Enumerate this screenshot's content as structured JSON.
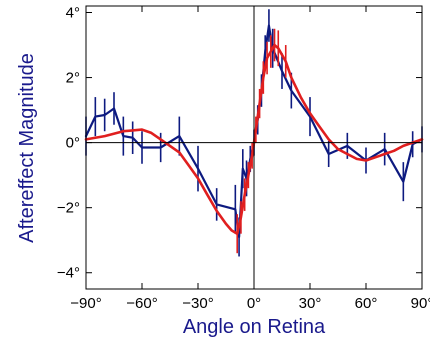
{
  "chart_data": {
    "type": "line",
    "xlabel": "Angle on Retina",
    "ylabel": "Aftereffect Magnitude",
    "xlim": [
      -90,
      90
    ],
    "ylim": [
      -4.5,
      4.2
    ],
    "x_ticks": [
      -90,
      -60,
      -30,
      0,
      30,
      60,
      90
    ],
    "x_tick_labels": [
      "−90°",
      "−60°",
      "−30°",
      "0°",
      "30°",
      "60°",
      "90°"
    ],
    "y_ticks": [
      4,
      2,
      0,
      -2,
      -4
    ],
    "y_tick_labels": [
      "4°",
      "2°",
      "0°",
      "−2°",
      "−4°"
    ],
    "reference_lines": {
      "x": 0,
      "y": 0
    },
    "label_color": "#1a1a8c",
    "series": [
      {
        "color": "#0d1a80",
        "points": [
          {
            "x": -90,
            "y": 0.2,
            "err": 0.6
          },
          {
            "x": -85,
            "y": 0.8,
            "err": 0.6
          },
          {
            "x": -80,
            "y": 0.85,
            "err": 0.5
          },
          {
            "x": -75,
            "y": 1.05,
            "err": 0.5
          },
          {
            "x": -70,
            "y": 0.2,
            "err": 0.6
          },
          {
            "x": -65,
            "y": 0.15,
            "err": 0.5
          },
          {
            "x": -60,
            "y": -0.15,
            "err": 0.5
          },
          {
            "x": -50,
            "y": -0.15,
            "err": 0.45
          },
          {
            "x": -40,
            "y": 0.2,
            "err": 0.6
          },
          {
            "x": -30,
            "y": -0.8,
            "err": 0.7
          },
          {
            "x": -20,
            "y": -1.9,
            "err": 0.5
          },
          {
            "x": -10,
            "y": -2.05,
            "err": 0.75
          },
          {
            "x": -8,
            "y": -2.9,
            "err": 0.6
          },
          {
            "x": -6,
            "y": -0.8,
            "err": 0.6
          },
          {
            "x": -4,
            "y": -1.1,
            "err": 0.55
          },
          {
            "x": -2,
            "y": -0.5,
            "err": 0.4
          },
          {
            "x": 0,
            "y": 0.0,
            "err": 0.4
          },
          {
            "x": 2,
            "y": 0.7,
            "err": 0.45
          },
          {
            "x": 4,
            "y": 1.6,
            "err": 0.5
          },
          {
            "x": 6,
            "y": 2.8,
            "err": 0.5
          },
          {
            "x": 8,
            "y": 3.6,
            "err": 0.5
          },
          {
            "x": 10,
            "y": 2.9,
            "err": 0.6
          },
          {
            "x": 15,
            "y": 2.2,
            "err": 0.55
          },
          {
            "x": 20,
            "y": 1.6,
            "err": 0.55
          },
          {
            "x": 30,
            "y": 0.8,
            "err": 0.6
          },
          {
            "x": 40,
            "y": -0.35,
            "err": 0.4
          },
          {
            "x": 50,
            "y": -0.1,
            "err": 0.4
          },
          {
            "x": 60,
            "y": -0.55,
            "err": 0.4
          },
          {
            "x": 70,
            "y": -0.2,
            "err": 0.5
          },
          {
            "x": 80,
            "y": -1.2,
            "err": 0.6
          },
          {
            "x": 85,
            "y": -0.05,
            "err": 0.4
          },
          {
            "x": 90,
            "y": 0.1,
            "err": 0.4
          }
        ]
      },
      {
        "color": "#e01f1f",
        "points": [
          {
            "x": -90,
            "y": 0.1,
            "err": 0.0
          },
          {
            "x": -80,
            "y": 0.2,
            "err": 0.0
          },
          {
            "x": -70,
            "y": 0.35,
            "err": 0.0
          },
          {
            "x": -60,
            "y": 0.4,
            "err": 0.0
          },
          {
            "x": -55,
            "y": 0.3,
            "err": 0.0
          },
          {
            "x": -50,
            "y": 0.1,
            "err": 0.0
          },
          {
            "x": -45,
            "y": -0.1,
            "err": 0.0
          },
          {
            "x": -40,
            "y": -0.3,
            "err": 0.0
          },
          {
            "x": -35,
            "y": -0.7,
            "err": 0.0
          },
          {
            "x": -30,
            "y": -1.1,
            "err": 0.0
          },
          {
            "x": -25,
            "y": -1.6,
            "err": 0.0
          },
          {
            "x": -20,
            "y": -2.1,
            "err": 0.0
          },
          {
            "x": -15,
            "y": -2.5,
            "err": 0.0
          },
          {
            "x": -12,
            "y": -2.7,
            "err": 0.0
          },
          {
            "x": -9,
            "y": -2.8,
            "err": 0.6
          },
          {
            "x": -7,
            "y": -2.3,
            "err": 0.5
          },
          {
            "x": -5,
            "y": -1.6,
            "err": 0.5
          },
          {
            "x": -3,
            "y": -1.0,
            "err": 0.4
          },
          {
            "x": -1,
            "y": -0.4,
            "err": 0.4
          },
          {
            "x": 1,
            "y": 0.4,
            "err": 0.4
          },
          {
            "x": 3,
            "y": 1.2,
            "err": 0.45
          },
          {
            "x": 5,
            "y": 2.0,
            "err": 0.5
          },
          {
            "x": 7,
            "y": 2.6,
            "err": 0.5
          },
          {
            "x": 9,
            "y": 2.8,
            "err": 0.5
          },
          {
            "x": 11,
            "y": 3.0,
            "err": 0.5
          },
          {
            "x": 13,
            "y": 2.9,
            "err": 0.55
          },
          {
            "x": 17,
            "y": 2.5,
            "err": 0.5
          },
          {
            "x": 20,
            "y": 2.0,
            "err": 0.0
          },
          {
            "x": 25,
            "y": 1.4,
            "err": 0.0
          },
          {
            "x": 30,
            "y": 0.9,
            "err": 0.0
          },
          {
            "x": 35,
            "y": 0.5,
            "err": 0.0
          },
          {
            "x": 40,
            "y": 0.1,
            "err": 0.0
          },
          {
            "x": 45,
            "y": -0.2,
            "err": 0.0
          },
          {
            "x": 50,
            "y": -0.35,
            "err": 0.0
          },
          {
            "x": 55,
            "y": -0.5,
            "err": 0.0
          },
          {
            "x": 60,
            "y": -0.55,
            "err": 0.0
          },
          {
            "x": 65,
            "y": -0.45,
            "err": 0.0
          },
          {
            "x": 70,
            "y": -0.35,
            "err": 0.0
          },
          {
            "x": 75,
            "y": -0.25,
            "err": 0.0
          },
          {
            "x": 80,
            "y": -0.1,
            "err": 0.0
          },
          {
            "x": 85,
            "y": 0.0,
            "err": 0.0
          },
          {
            "x": 90,
            "y": 0.1,
            "err": 0.0
          }
        ]
      }
    ]
  }
}
